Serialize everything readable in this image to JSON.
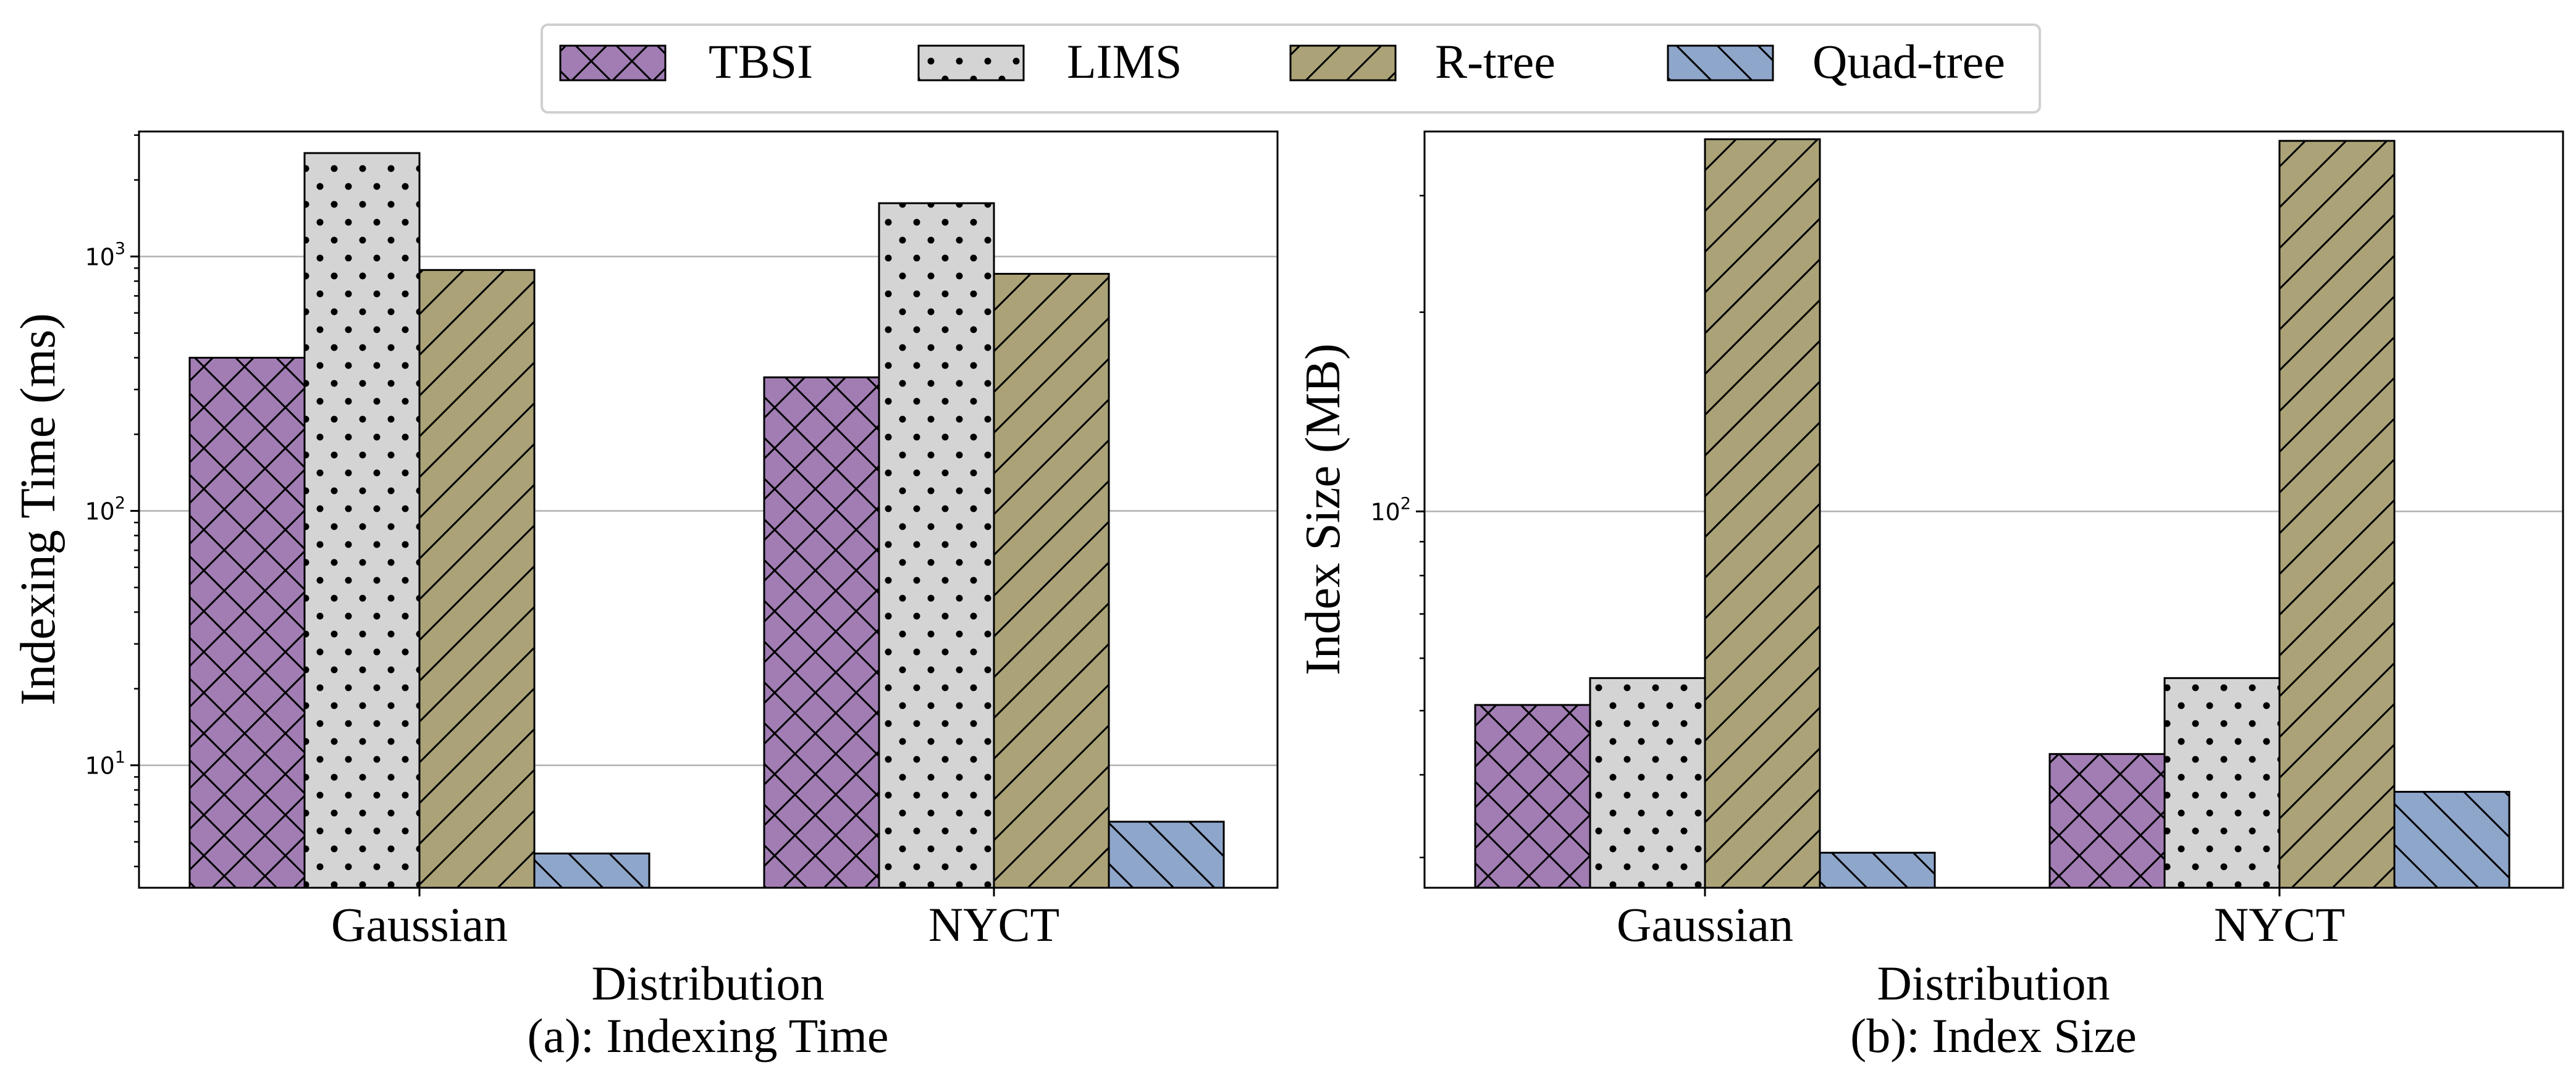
{
  "colors": {
    "TBSI": "#a17db4",
    "LIMS": "#d4d4d4",
    "R-tree": "#aba377",
    "Quad-tree": "#8fa6cb"
  },
  "legend": {
    "position": "top-center",
    "entries": [
      {
        "name": "TBSI",
        "hatch": "cross-hatch"
      },
      {
        "name": "LIMS",
        "hatch": "dots"
      },
      {
        "name": "R-tree",
        "hatch": "forward-diagonal"
      },
      {
        "name": "Quad-tree",
        "hatch": "back-diagonal"
      }
    ]
  },
  "chart_data": [
    {
      "type": "bar",
      "caption": "(a): Indexing Time",
      "xlabel": "Distribution",
      "ylabel": "Indexing Time (ms)",
      "yscale": "log",
      "ylim": [
        3.3,
        3100
      ],
      "yticks": [
        10,
        100,
        1000
      ],
      "ytick_labels": [
        {
          "base": "10",
          "exp": "1"
        },
        {
          "base": "10",
          "exp": "2"
        },
        {
          "base": "10",
          "exp": "3"
        }
      ],
      "grid": "y-major",
      "categories": [
        "Gaussian",
        "NYCT"
      ],
      "series": [
        {
          "name": "TBSI",
          "values": [
            400,
            335
          ]
        },
        {
          "name": "LIMS",
          "values": [
            2550,
            1620
          ]
        },
        {
          "name": "R-tree",
          "values": [
            885,
            855
          ]
        },
        {
          "name": "Quad-tree",
          "values": [
            4.5,
            6.0
          ]
        }
      ]
    },
    {
      "type": "bar",
      "caption": "(b): Index Size",
      "xlabel": "Distribution",
      "ylabel": "Index Size (MB)",
      "yscale": "log",
      "ylim": [
        27,
        375
      ],
      "yticks": [
        100
      ],
      "ytick_labels": [
        {
          "base": "10",
          "exp": "2"
        }
      ],
      "grid": "y-major",
      "categories": [
        "Gaussian",
        "NYCT"
      ],
      "series": [
        {
          "name": "TBSI",
          "values": [
            51,
            43
          ]
        },
        {
          "name": "LIMS",
          "values": [
            56,
            56
          ]
        },
        {
          "name": "R-tree",
          "values": [
            365,
            363
          ]
        },
        {
          "name": "Quad-tree",
          "values": [
            30.5,
            37.7
          ]
        }
      ]
    }
  ]
}
